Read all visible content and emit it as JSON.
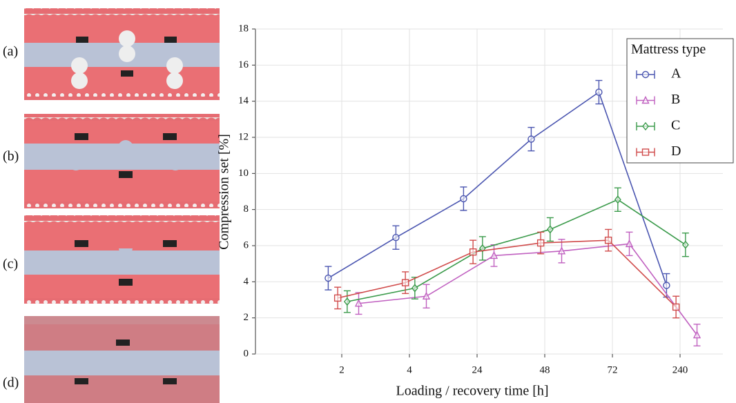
{
  "image_labels": [
    "(a)",
    "(b)",
    "(c)",
    "(d)"
  ],
  "chart_data": {
    "type": "line",
    "x_label": "Loading / recovery time [h]",
    "y_label": "Compression set [%]",
    "categories": [
      "2",
      "4",
      "24",
      "48",
      "72",
      "240"
    ],
    "ylim": [
      0,
      18
    ],
    "yticks": [
      0,
      2,
      4,
      6,
      8,
      10,
      12,
      14,
      16,
      18
    ],
    "grid": true,
    "legend_title": "Mattress type",
    "legend_position": "upper right",
    "series": [
      {
        "name": "A",
        "color": "#4a55b0",
        "marker": "circle",
        "values": [
          4.2,
          6.45,
          8.6,
          11.9,
          14.5,
          3.8
        ],
        "errors": [
          0.65,
          0.65,
          0.65,
          0.65,
          0.65,
          0.65
        ]
      },
      {
        "name": "B",
        "color": "#c060c0",
        "marker": "triangle",
        "values": [
          2.8,
          3.2,
          5.45,
          5.7,
          6.1,
          1.05
        ],
        "errors": [
          0.6,
          0.65,
          0.6,
          0.65,
          0.65,
          0.6
        ]
      },
      {
        "name": "C",
        "color": "#3a9a4a",
        "marker": "diamond",
        "values": [
          2.9,
          3.65,
          5.85,
          6.9,
          8.55,
          6.05
        ],
        "errors": [
          0.6,
          0.6,
          0.65,
          0.65,
          0.65,
          0.65
        ]
      },
      {
        "name": "D",
        "color": "#d04a4a",
        "marker": "square",
        "values": [
          3.1,
          3.95,
          5.65,
          6.15,
          6.3,
          2.6
        ],
        "errors": [
          0.6,
          0.6,
          0.65,
          0.6,
          0.6,
          0.6
        ]
      }
    ]
  }
}
